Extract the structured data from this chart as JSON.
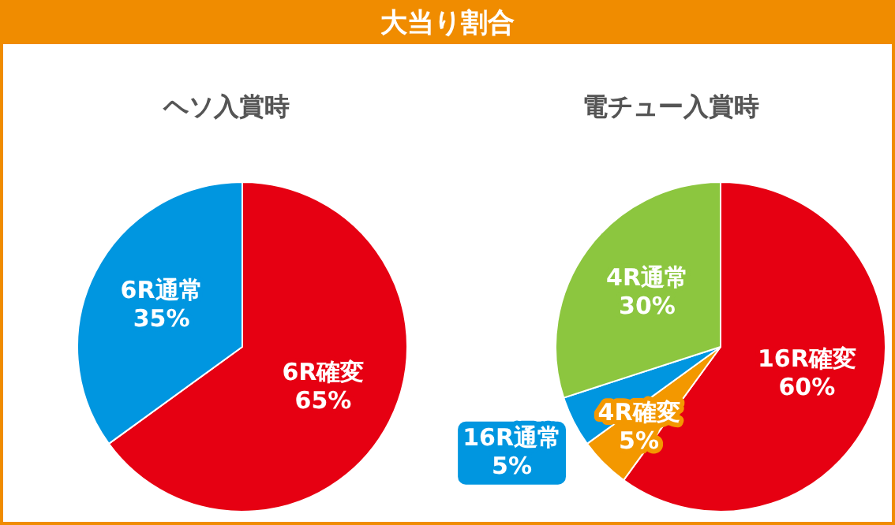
{
  "chart_data": [
    {
      "type": "pie",
      "title": "大当り割合",
      "subtitle": "ヘソ入賞時",
      "categories": [
        "6R確変",
        "6R通常"
      ],
      "values": [
        65,
        35
      ],
      "colors": [
        "#e60012",
        "#0096e0"
      ],
      "value_labels": [
        "65%",
        "35%"
      ],
      "legend": false
    },
    {
      "type": "pie",
      "subtitle": "電チュー入賞時",
      "categories": [
        "16R確変",
        "4R確変",
        "16R通常",
        "4R通常"
      ],
      "values": [
        60,
        5,
        5,
        30
      ],
      "colors": [
        "#e60012",
        "#f39800",
        "#0096e0",
        "#8cc63f"
      ],
      "value_labels": [
        "60%",
        "5%",
        "5%",
        "30%"
      ],
      "legend": false
    }
  ]
}
